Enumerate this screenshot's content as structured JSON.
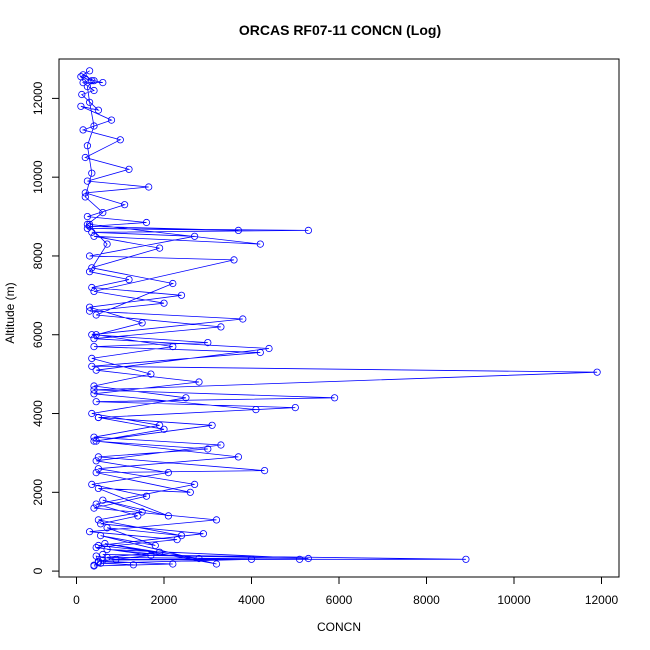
{
  "chart_data": {
    "type": "line",
    "title": "ORCAS RF07-11 CONCN (Log)",
    "xlabel": "CONCN",
    "ylabel": "Altitude (m)",
    "xlim": [
      -400,
      12400
    ],
    "ylim": [
      -150,
      13000
    ],
    "x_ticks": [
      0,
      2000,
      4000,
      6000,
      8000,
      10000,
      12000
    ],
    "y_ticks": [
      0,
      2000,
      4000,
      6000,
      8000,
      10000,
      12000
    ],
    "grid": false,
    "marker": "open-circle",
    "series_color": "#0000ff",
    "series": [
      {
        "points": [
          [
            400,
            150
          ],
          [
            500,
            220
          ],
          [
            450,
            380
          ],
          [
            900,
            300
          ],
          [
            8900,
            300
          ],
          [
            600,
            420
          ],
          [
            5300,
            320
          ],
          [
            700,
            550
          ],
          [
            2800,
            320
          ],
          [
            650,
            700
          ],
          [
            3200,
            180
          ],
          [
            550,
            900
          ],
          [
            1800,
            650
          ],
          [
            700,
            1100
          ],
          [
            2400,
            900
          ],
          [
            500,
            1300
          ],
          [
            1500,
            1500
          ],
          [
            600,
            1800
          ],
          [
            2100,
            1400
          ],
          [
            500,
            2100
          ],
          [
            2600,
            2000
          ],
          [
            450,
            2500
          ],
          [
            4300,
            2550
          ],
          [
            500,
            2900
          ],
          [
            3000,
            3100
          ],
          [
            400,
            3300
          ],
          [
            3100,
            3700
          ],
          [
            500,
            3900
          ],
          [
            5000,
            4150
          ],
          [
            450,
            4300
          ],
          [
            5900,
            4400
          ],
          [
            400,
            4600
          ],
          [
            11900,
            5050
          ],
          [
            350,
            5200
          ],
          [
            4200,
            5550
          ],
          [
            400,
            5700
          ],
          [
            3000,
            5800
          ],
          [
            350,
            6000
          ],
          [
            3800,
            6400
          ],
          [
            300,
            6600
          ],
          [
            2000,
            6800
          ],
          [
            400,
            7100
          ],
          [
            3600,
            7900
          ],
          [
            300,
            8000
          ],
          [
            2700,
            8500
          ],
          [
            350,
            8600
          ],
          [
            5300,
            8650
          ],
          [
            250,
            8700
          ],
          [
            3700,
            8650
          ],
          [
            300,
            8750
          ],
          [
            1600,
            8850
          ],
          [
            250,
            9000
          ],
          [
            1100,
            9300
          ],
          [
            200,
            9600
          ],
          [
            1650,
            9750
          ],
          [
            250,
            9900
          ],
          [
            1200,
            10200
          ],
          [
            200,
            10500
          ],
          [
            1000,
            10950
          ],
          [
            150,
            11200
          ],
          [
            800,
            11450
          ],
          [
            100,
            11800
          ],
          [
            500,
            11700
          ],
          [
            120,
            12100
          ],
          [
            400,
            12200
          ],
          [
            150,
            12400
          ],
          [
            600,
            12400
          ],
          [
            200,
            12500
          ],
          [
            350,
            12450
          ],
          [
            100,
            12550
          ],
          [
            300,
            12700
          ],
          [
            150,
            12600
          ],
          [
            400,
            12450
          ],
          [
            250,
            12300
          ],
          [
            300,
            11900
          ],
          [
            400,
            11300
          ],
          [
            250,
            10800
          ],
          [
            350,
            10100
          ],
          [
            200,
            9500
          ],
          [
            600,
            9100
          ],
          [
            250,
            8800
          ],
          [
            700,
            8300
          ],
          [
            300,
            7600
          ],
          [
            1200,
            7400
          ],
          [
            350,
            7200
          ],
          [
            2400,
            7000
          ],
          [
            300,
            6700
          ],
          [
            1500,
            6300
          ],
          [
            450,
            6000
          ],
          [
            2200,
            5700
          ],
          [
            350,
            5400
          ],
          [
            1700,
            5000
          ],
          [
            400,
            4700
          ],
          [
            2500,
            4400
          ],
          [
            350,
            4000
          ],
          [
            1900,
            3700
          ],
          [
            400,
            3400
          ],
          [
            3300,
            3200
          ],
          [
            450,
            2800
          ],
          [
            2100,
            2500
          ],
          [
            350,
            2200
          ],
          [
            1600,
            1900
          ],
          [
            400,
            1600
          ],
          [
            3200,
            1300
          ],
          [
            300,
            1000
          ],
          [
            2300,
            800
          ],
          [
            450,
            600
          ],
          [
            1700,
            400
          ],
          [
            500,
            250
          ],
          [
            2200,
            180
          ],
          [
            400,
            130
          ],
          [
            1300,
            160
          ],
          [
            550,
            200
          ],
          [
            4000,
            300
          ],
          [
            600,
            280
          ],
          [
            5100,
            300
          ],
          [
            700,
            350
          ],
          [
            1900,
            480
          ],
          [
            500,
            650
          ],
          [
            2900,
            950
          ],
          [
            550,
            1200
          ],
          [
            1400,
            1400
          ],
          [
            450,
            1700
          ],
          [
            2700,
            2200
          ],
          [
            500,
            2600
          ],
          [
            3700,
            2900
          ],
          [
            450,
            3300
          ],
          [
            2000,
            3600
          ],
          [
            500,
            3900
          ],
          [
            4100,
            4100
          ],
          [
            400,
            4500
          ],
          [
            2800,
            4800
          ],
          [
            450,
            5100
          ],
          [
            4400,
            5650
          ],
          [
            400,
            5900
          ],
          [
            3300,
            6200
          ],
          [
            450,
            6500
          ],
          [
            2200,
            7300
          ],
          [
            350,
            7700
          ],
          [
            1900,
            8200
          ],
          [
            400,
            8500
          ],
          [
            4200,
            8300
          ],
          [
            300,
            8800
          ]
        ]
      }
    ]
  }
}
